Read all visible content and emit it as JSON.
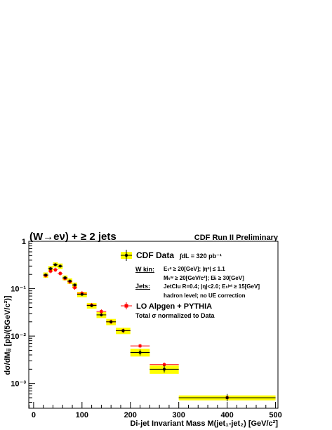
{
  "chart_data": {
    "type": "scatter",
    "title": "(W→eν) + ≥ 2 jets",
    "subtitle": "CDF Run II Preliminary",
    "xlabel": "Di-jet Invariant Mass M(jet₁-jet₂) [GeV/c²]",
    "ylabel": "dσ/dMⱼⱼ [pb/(5GeV/c²)]",
    "x_axis": {
      "min": -10,
      "max": 505,
      "ticks": [
        0,
        100,
        200,
        300,
        400,
        500
      ],
      "tick_labels": [
        "0",
        "100",
        "200",
        "300",
        "400",
        "500"
      ]
    },
    "y_axis": {
      "scale": "log",
      "min": 0.0003,
      "max": 1.0,
      "ticks": [
        0.001,
        0.01,
        0.1,
        1
      ],
      "tick_labels": [
        "10⁻³",
        "10⁻²",
        "10⁻¹",
        "1"
      ]
    },
    "grid": false,
    "legend": {
      "position": "top-right",
      "data_label": "CDF Data",
      "lumi": "∫dL = 320 pb⁻¹",
      "wkin_label": "W kin:",
      "wkin_line1": "Eₜᵉ ≥ 20[GeV]; |ηᵉ| ≤ 1.1",
      "wkin_line2": "Mₜʷ ≥ 20[GeV/c²]; E̸ₜ ≥ 30[GeV]",
      "jets_label": "Jets:",
      "jets_line1": "JetClu R=0.4; |η|<2.0; Eₜʲᵉᵗ ≥ 15[GeV]",
      "jets_line2": "hadron level; no UE correction",
      "mc_label": "LO Alpgen + PYTHIA",
      "mc_note": "Total σ normalized to Data"
    },
    "colors": {
      "data": "#000000",
      "syst_band": "#ffff00",
      "mc": "#ff0000"
    },
    "series": [
      {
        "name": "CDF Data",
        "x": [
          25,
          35,
          45,
          55,
          65,
          75,
          85,
          100,
          120,
          140,
          160,
          185,
          220,
          270,
          400
        ],
        "xerr": [
          5,
          5,
          5,
          5,
          5,
          5,
          5,
          10,
          10,
          10,
          10,
          15,
          20,
          30,
          100
        ],
        "y": [
          0.195,
          0.265,
          0.32,
          0.3,
          0.17,
          0.145,
          0.12,
          0.076,
          0.044,
          0.028,
          0.02,
          0.013,
          0.0045,
          0.002,
          0.0005
        ],
        "syst_lo": [
          0.17,
          0.23,
          0.28,
          0.26,
          0.15,
          0.125,
          0.105,
          0.066,
          0.038,
          0.024,
          0.017,
          0.011,
          0.0037,
          0.0016,
          0.00044
        ],
        "syst_hi": [
          0.22,
          0.3,
          0.36,
          0.34,
          0.19,
          0.165,
          0.135,
          0.086,
          0.05,
          0.032,
          0.023,
          0.015,
          0.0054,
          0.0024,
          0.00056
        ],
        "stat_lo": [
          0.185,
          0.25,
          0.305,
          0.285,
          0.16,
          0.137,
          0.113,
          0.072,
          0.041,
          0.026,
          0.0185,
          0.0118,
          0.0039,
          0.0017,
          0.00042
        ],
        "stat_hi": [
          0.205,
          0.28,
          0.335,
          0.315,
          0.18,
          0.153,
          0.127,
          0.08,
          0.047,
          0.03,
          0.0215,
          0.0142,
          0.0052,
          0.0024,
          0.0006
        ]
      },
      {
        "name": "LO Alpgen + PYTHIA",
        "x": [
          25,
          35,
          45,
          55,
          65,
          75,
          85,
          100,
          120,
          140,
          160,
          185,
          220,
          270,
          400
        ],
        "xerr": [
          5,
          5,
          5,
          5,
          5,
          5,
          5,
          10,
          10,
          10,
          10,
          15,
          20,
          30,
          100
        ],
        "y": [
          0.19,
          0.235,
          0.25,
          0.21,
          0.165,
          0.14,
          0.105,
          0.08,
          0.045,
          0.033,
          0.02,
          0.013,
          0.0062,
          0.0025,
          0.0005
        ]
      }
    ]
  }
}
